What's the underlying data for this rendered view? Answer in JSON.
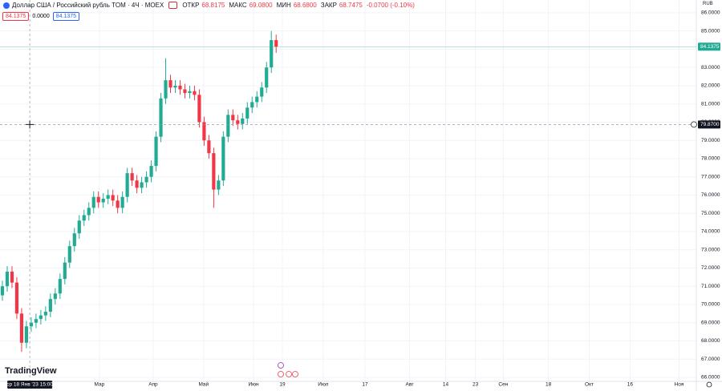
{
  "header": {
    "symbol": "Доллар США / Российский рубль TOM · 4Ч · MOEX",
    "stats": [
      {
        "label": "ОТКР",
        "value": "68.8175"
      },
      {
        "label": "МАКС",
        "value": "69.0800"
      },
      {
        "label": "МИН",
        "value": "68.6800"
      },
      {
        "label": "ЗАКР",
        "value": "68.7475"
      }
    ],
    "change": "-0.0700 (-0.10%)",
    "bid": "84.1375",
    "spread": "0.0000",
    "ask": "84.1375",
    "currency": "RUB"
  },
  "logo": "TradingView",
  "chart_data": {
    "type": "candlestick",
    "up_color": "#22ab94",
    "down_color": "#f23645",
    "grid": true,
    "x": [
      0.5,
      1.5,
      2.5,
      3.5,
      4.5,
      5.5,
      6.5,
      7.5,
      8.5,
      9.5,
      10.5,
      11.5,
      12.5,
      13.5,
      14.5,
      15.5,
      16.5,
      17.5,
      18.5,
      19.5,
      20.5,
      21.5,
      22.5,
      23.5,
      24.5,
      25.5,
      26.5,
      27.5,
      28.5,
      29.5,
      30.5,
      31.5,
      32.5,
      33.5,
      34.5,
      35.5,
      36.5,
      37.5,
      38.5,
      39.5,
      40.5,
      41.5,
      42.5,
      43.5,
      44.5,
      45.5,
      46.5,
      47.5,
      48.5,
      49.5,
      50.5,
      51.5,
      52.5,
      53.5,
      54.5,
      55.5,
      56.5,
      57.5
    ],
    "open": [
      70.5,
      71.0,
      71.8,
      71.2,
      69.5,
      67.9,
      68.8,
      69.0,
      69.2,
      69.4,
      69.6,
      70.3,
      70.6,
      71.4,
      72.3,
      73.2,
      73.9,
      74.6,
      74.9,
      75.3,
      75.9,
      75.6,
      75.8,
      76.0,
      75.7,
      75.3,
      75.9,
      77.2,
      76.8,
      76.4,
      76.7,
      77.0,
      77.6,
      79.2,
      81.3,
      82.3,
      81.9,
      82.0,
      81.8,
      81.6,
      81.7,
      81.5,
      80.0,
      79.0,
      78.3,
      76.3,
      76.8,
      79.2,
      80.4,
      80.1,
      79.9,
      80.2,
      80.8,
      81.1,
      81.4,
      81.9,
      83.0,
      84.5
    ],
    "high": [
      71.3,
      72.1,
      72.1,
      71.5,
      69.8,
      69.1,
      69.3,
      69.5,
      69.7,
      69.9,
      70.6,
      70.9,
      71.7,
      72.6,
      73.5,
      74.2,
      74.9,
      75.2,
      75.6,
      76.2,
      76.2,
      76.1,
      76.3,
      76.3,
      76.0,
      76.2,
      77.5,
      77.5,
      77.1,
      77.0,
      77.3,
      77.9,
      79.5,
      81.6,
      83.5,
      82.6,
      82.3,
      82.3,
      82.1,
      82.0,
      82.0,
      81.8,
      80.3,
      79.3,
      78.6,
      77.1,
      79.5,
      80.7,
      80.7,
      80.4,
      80.5,
      81.1,
      81.4,
      81.7,
      82.2,
      83.3,
      85.0,
      84.8
    ],
    "low": [
      70.2,
      70.7,
      70.9,
      69.2,
      67.4,
      67.6,
      68.5,
      68.7,
      68.9,
      69.1,
      69.3,
      70.0,
      70.3,
      71.1,
      72.0,
      72.9,
      73.6,
      74.3,
      74.6,
      75.0,
      75.3,
      75.3,
      75.5,
      75.4,
      75.0,
      75.0,
      75.6,
      76.5,
      76.1,
      76.1,
      76.4,
      76.7,
      77.3,
      78.9,
      81.0,
      81.6,
      81.6,
      81.5,
      81.3,
      81.3,
      81.2,
      79.7,
      78.7,
      78.0,
      75.3,
      76.0,
      76.5,
      78.9,
      79.8,
      79.6,
      79.6,
      79.9,
      80.5,
      80.8,
      81.1,
      81.6,
      82.7,
      83.8
    ],
    "close": [
      71.0,
      71.8,
      71.2,
      69.5,
      67.9,
      68.8,
      69.0,
      69.2,
      69.4,
      69.6,
      70.3,
      70.6,
      71.4,
      72.3,
      73.2,
      73.9,
      74.6,
      74.9,
      75.3,
      75.9,
      75.6,
      75.8,
      76.0,
      75.7,
      75.3,
      75.9,
      77.2,
      76.8,
      76.4,
      76.7,
      77.0,
      77.6,
      79.2,
      81.3,
      82.3,
      81.9,
      82.0,
      81.8,
      81.6,
      81.7,
      81.5,
      80.0,
      79.0,
      78.3,
      76.3,
      76.8,
      79.2,
      80.4,
      80.1,
      79.9,
      80.2,
      80.8,
      81.1,
      81.4,
      81.9,
      83.0,
      84.5,
      84.1375
    ],
    "xlim": [
      0,
      145
    ],
    "xticks": [
      {
        "value": 20.7,
        "label": "Мар"
      },
      {
        "value": 31.9,
        "label": "Апр"
      },
      {
        "value": 42.4,
        "label": "Май"
      },
      {
        "value": 52.8,
        "label": "Июн"
      },
      {
        "value": 58.8,
        "label": "19"
      },
      {
        "value": 67.3,
        "label": "Июл"
      },
      {
        "value": 76,
        "label": "17"
      },
      {
        "value": 85.3,
        "label": "Авг"
      },
      {
        "value": 92.8,
        "label": "14"
      },
      {
        "value": 99,
        "label": "23"
      },
      {
        "value": 104.8,
        "label": "Сен"
      },
      {
        "value": 114.2,
        "label": "18"
      },
      {
        "value": 122.7,
        "label": "Окт"
      },
      {
        "value": 131.2,
        "label": "16"
      },
      {
        "value": 141.4,
        "label": "Ноя"
      }
    ],
    "ylim": [
      65.78,
      86.7
    ],
    "yticks": [
      {
        "value": 66,
        "label": "66.0000"
      },
      {
        "value": 67,
        "label": "67.0000"
      },
      {
        "value": 68,
        "label": "68.0000"
      },
      {
        "value": 69,
        "label": "69.0000"
      },
      {
        "value": 70,
        "label": "70.0000"
      },
      {
        "value": 71,
        "label": "71.0000"
      },
      {
        "value": 72,
        "label": "72.0000"
      },
      {
        "value": 73,
        "label": "73.0000"
      },
      {
        "value": 74,
        "label": "74.0000"
      },
      {
        "value": 75,
        "label": "75.0000"
      },
      {
        "value": 76,
        "label": "76.0000"
      },
      {
        "value": 77,
        "label": "77.0000"
      },
      {
        "value": 78,
        "label": "78.0000"
      },
      {
        "value": 79,
        "label": "79.0000"
      },
      {
        "value": 80,
        "label": "80.0000"
      },
      {
        "value": 81,
        "label": "81.0000"
      },
      {
        "value": 82,
        "label": "82.0000"
      },
      {
        "value": 83,
        "label": "83.0000"
      },
      {
        "value": 84,
        "label": "84.0000"
      },
      {
        "value": 85,
        "label": "85.0000"
      },
      {
        "value": 86,
        "label": "86.0000"
      }
    ],
    "last_price": {
      "value": 84.1375,
      "label": "84.1375"
    },
    "crosshair": {
      "x": {
        "value": 6.2,
        "label": "ср 18 Янв '23  15:00"
      },
      "y": {
        "value": 79.87,
        "label": "79.8700"
      }
    }
  }
}
